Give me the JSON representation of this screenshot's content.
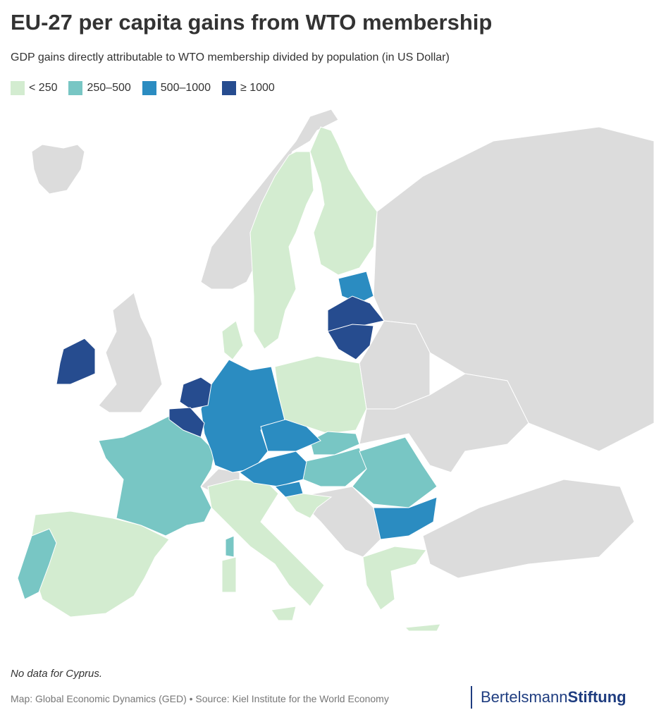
{
  "header": {
    "title": "EU-27 per capita gains from WTO membership",
    "subtitle": "GDP gains directly attributable to WTO membership divided by population (in US Dollar)"
  },
  "legend": [
    {
      "label": "< 250",
      "color": "#d3ecd0"
    },
    {
      "label": "250–500",
      "color": "#78c6c4"
    },
    {
      "label": "500–1000",
      "color": "#2b8cc1"
    },
    {
      "label": "≥ 1000",
      "color": "#264c8f"
    }
  ],
  "no_data_color": "#dcdcdc",
  "note": "No data for Cyprus.",
  "source": "Map: Global Economic Dynamics (GED) • Source: Kiel Institute for the World Economy",
  "logo": {
    "first": "Bertelsmann",
    "second": "Stiftung"
  }
}
